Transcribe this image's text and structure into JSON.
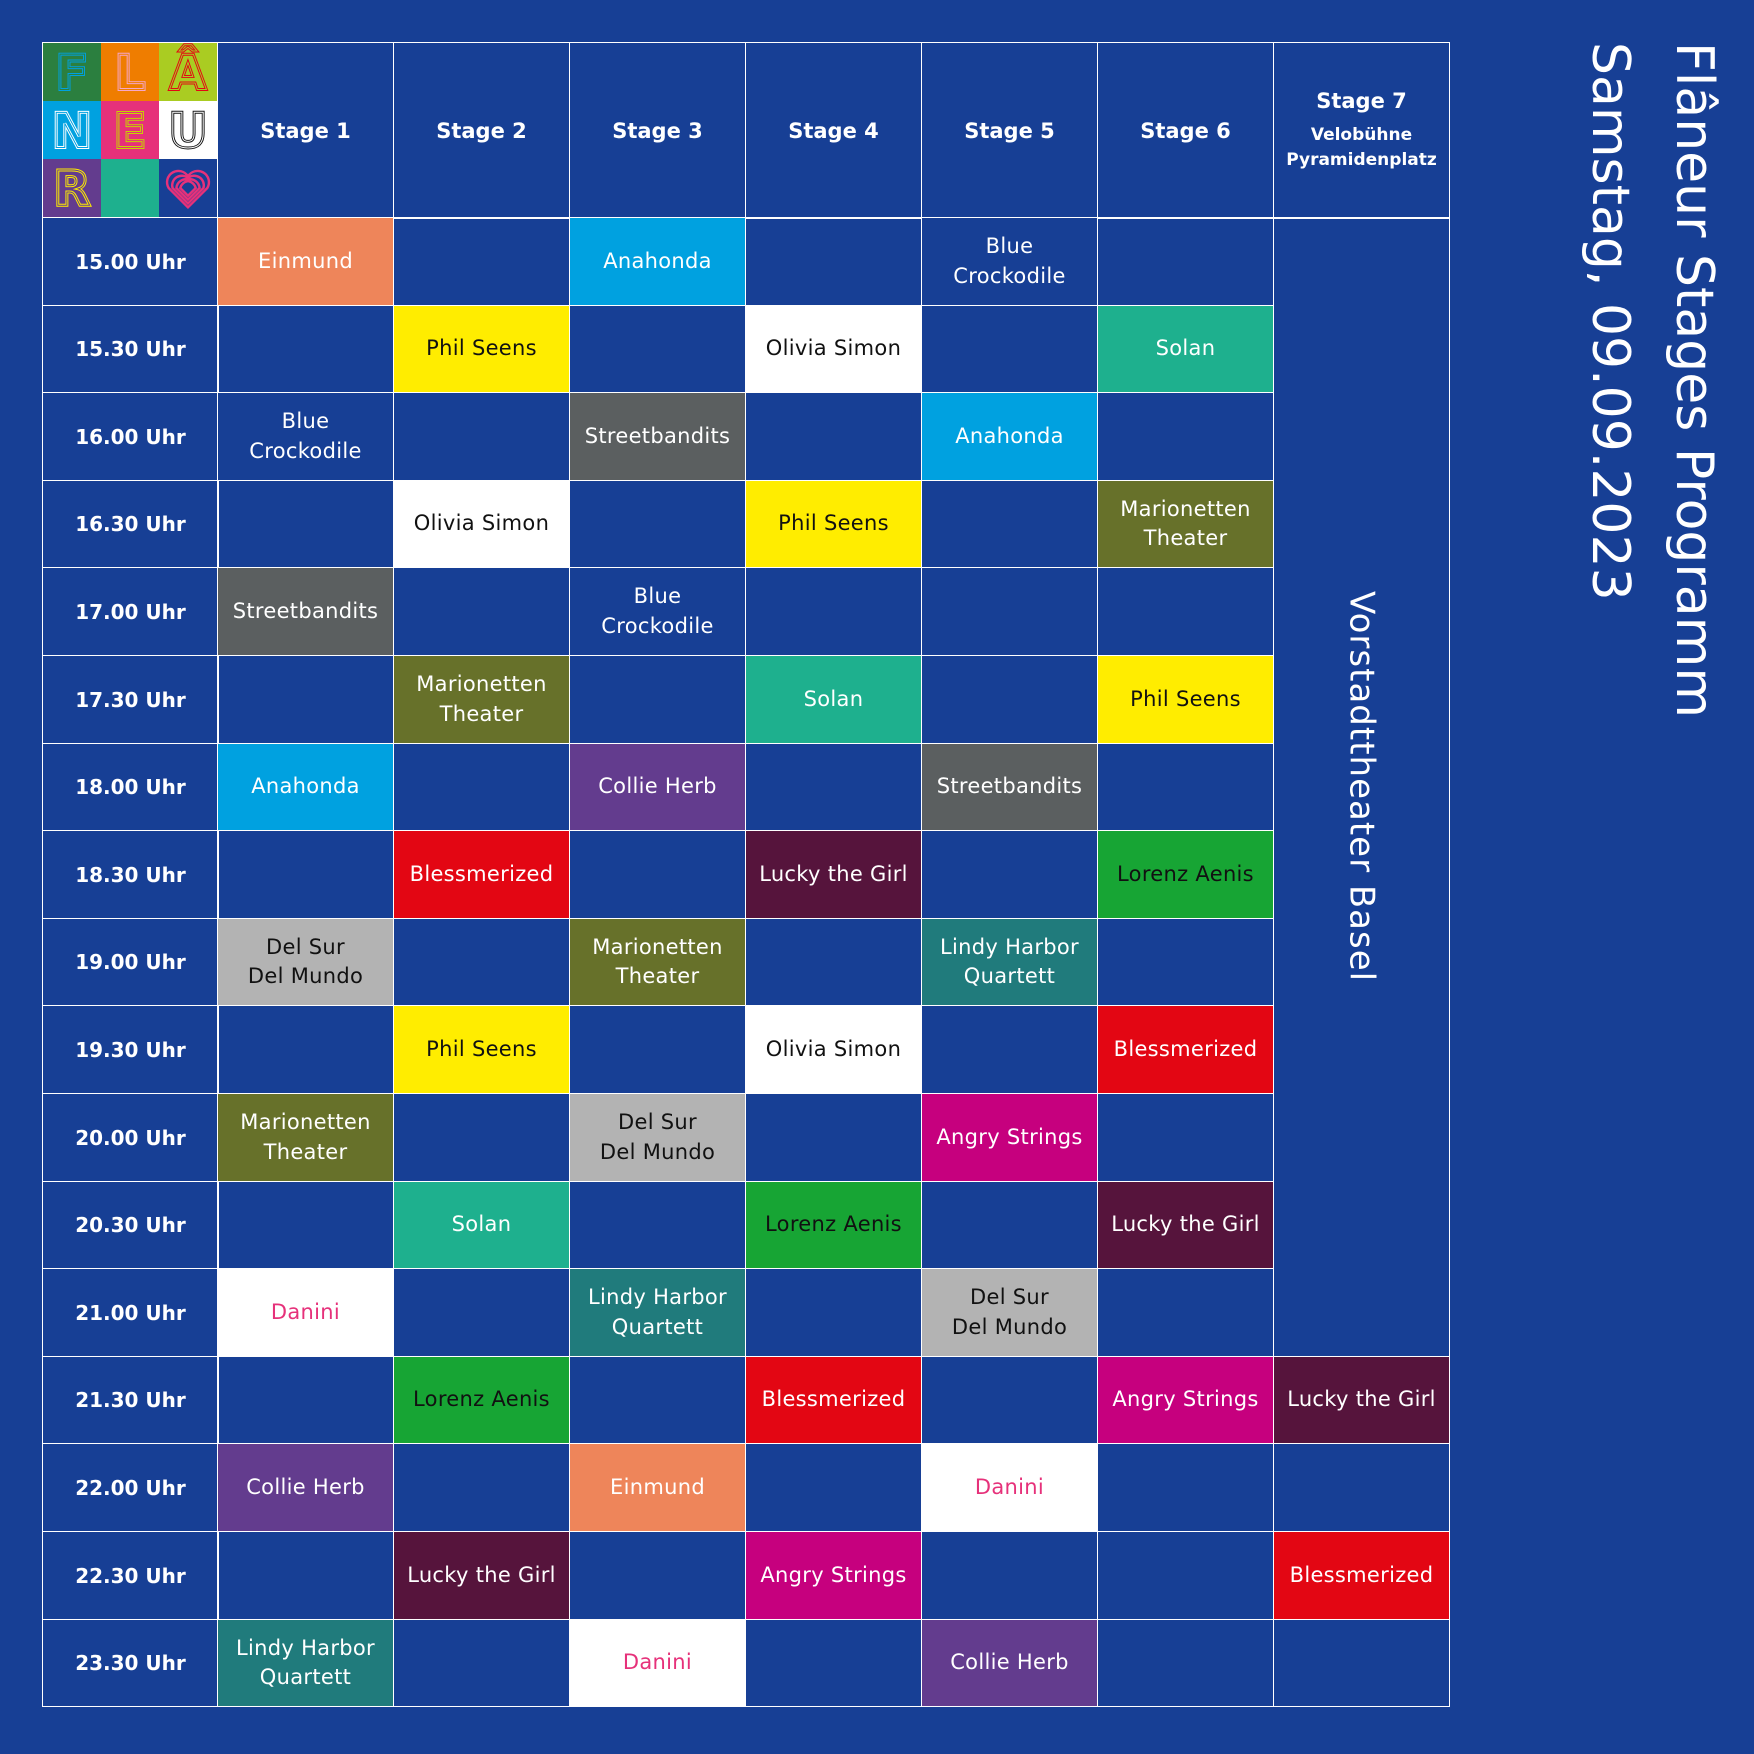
{
  "title": "Flâneur Stages Programm",
  "subtitle": "Samstag, 09.09.2023",
  "logo_letters": [
    "F",
    "L",
    "Â",
    "N",
    "E",
    "U",
    "R",
    "",
    "♡"
  ],
  "stages": [
    {
      "name": "Stage 1"
    },
    {
      "name": "Stage 2"
    },
    {
      "name": "Stage 3"
    },
    {
      "name": "Stage 4"
    },
    {
      "name": "Stage 5"
    },
    {
      "name": "Stage 6"
    },
    {
      "name": "Stage 7",
      "sub": "Velobühne\nPyramidenplatz"
    }
  ],
  "times": [
    "15.00 Uhr",
    "15.30 Uhr",
    "16.00 Uhr",
    "16.30 Uhr",
    "17.00 Uhr",
    "17.30 Uhr",
    "18.00 Uhr",
    "18.30 Uhr",
    "19.00 Uhr",
    "19.30 Uhr",
    "20.00 Uhr",
    "20.30 Uhr",
    "21.00 Uhr",
    "21.30 Uhr",
    "22.00 Uhr",
    "22.30 Uhr",
    "23.30 Uhr"
  ],
  "stage7_block": "Vorstadttheater Basel",
  "acts": {
    "Einmund": {
      "bg": "#ee855a",
      "fg": "#ffffff"
    },
    "Anahonda": {
      "bg": "#00a1e0",
      "fg": "#ffffff"
    },
    "Blue Crockodile": {
      "bg": "#173f95",
      "fg": "#ffffff"
    },
    "Phil Seens": {
      "bg": "#ffed00",
      "fg": "#111111"
    },
    "Olivia Simon": {
      "bg": "#ffffff",
      "fg": "#111111"
    },
    "Solan": {
      "bg": "#1eb08e",
      "fg": "#ffffff"
    },
    "Streetbandits": {
      "bg": "#5b5f60",
      "fg": "#ffffff"
    },
    "Marionetten\nTheater": {
      "bg": "#67712a",
      "fg": "#ffffff"
    },
    "Collie Herb": {
      "bg": "#633c8e",
      "fg": "#ffffff"
    },
    "Blessmerized": {
      "bg": "#e30613",
      "fg": "#ffffff"
    },
    "Lucky the Girl": {
      "bg": "#56143c",
      "fg": "#ffffff"
    },
    "Lorenz Aenis": {
      "bg": "#17a534",
      "fg": "#111111"
    },
    "Del Sur\nDel Mundo": {
      "bg": "#b3b3b3",
      "fg": "#111111"
    },
    "Lindy Harbor\nQuartett": {
      "bg": "#207b7c",
      "fg": "#ffffff"
    },
    "Angry Strings": {
      "bg": "#c6007e",
      "fg": "#ffffff"
    },
    "Danini": {
      "bg": "#ffffff",
      "fg": "#e6317a"
    }
  },
  "grid": [
    [
      "Einmund",
      "",
      "Anahonda",
      "",
      "Blue Crockodile",
      "",
      "BLOCK"
    ],
    [
      "",
      "Phil Seens",
      "",
      "Olivia Simon",
      "",
      "Solan",
      "BLOCK"
    ],
    [
      "Blue Crockodile",
      "",
      "Streetbandits",
      "",
      "Anahonda",
      "",
      "BLOCK"
    ],
    [
      "",
      "Olivia Simon",
      "",
      "Phil Seens",
      "",
      "Marionetten\nTheater",
      "BLOCK"
    ],
    [
      "Streetbandits",
      "",
      "Blue Crockodile",
      "",
      "",
      "",
      "BLOCK"
    ],
    [
      "",
      "Marionetten\nTheater",
      "",
      "Solan",
      "",
      "Phil Seens",
      "BLOCK"
    ],
    [
      "Anahonda",
      "",
      "Collie Herb",
      "",
      "Streetbandits",
      "",
      "BLOCK"
    ],
    [
      "",
      "Blessmerized",
      "",
      "Lucky the Girl",
      "",
      "Lorenz Aenis",
      "BLOCK"
    ],
    [
      "Del Sur\nDel Mundo",
      "",
      "Marionetten\nTheater",
      "",
      "Lindy Harbor\nQuartett",
      "",
      "BLOCK"
    ],
    [
      "",
      "Phil Seens",
      "",
      "Olivia Simon",
      "",
      "Blessmerized",
      "BLOCK"
    ],
    [
      "Marionetten\nTheater",
      "",
      "Del Sur\nDel Mundo",
      "",
      "Angry Strings",
      "",
      "BLOCK"
    ],
    [
      "",
      "Solan",
      "",
      "Lorenz Aenis",
      "",
      "Lucky the Girl",
      "BLOCK"
    ],
    [
      "Danini",
      "",
      "Lindy Harbor\nQuartett",
      "",
      "Del Sur\nDel Mundo",
      "",
      "BLOCK"
    ],
    [
      "",
      "Lorenz Aenis",
      "",
      "Blessmerized",
      "",
      "Angry Strings",
      "Lucky the Girl"
    ],
    [
      "Collie Herb",
      "",
      "Einmund",
      "",
      "Danini",
      "",
      ""
    ],
    [
      "",
      "Lucky the Girl",
      "",
      "Angry Strings",
      "",
      "",
      "Blessmerized"
    ],
    [
      "Lindy Harbor\nQuartett",
      "",
      "Danini",
      "",
      "Collie Herb",
      "",
      ""
    ]
  ]
}
